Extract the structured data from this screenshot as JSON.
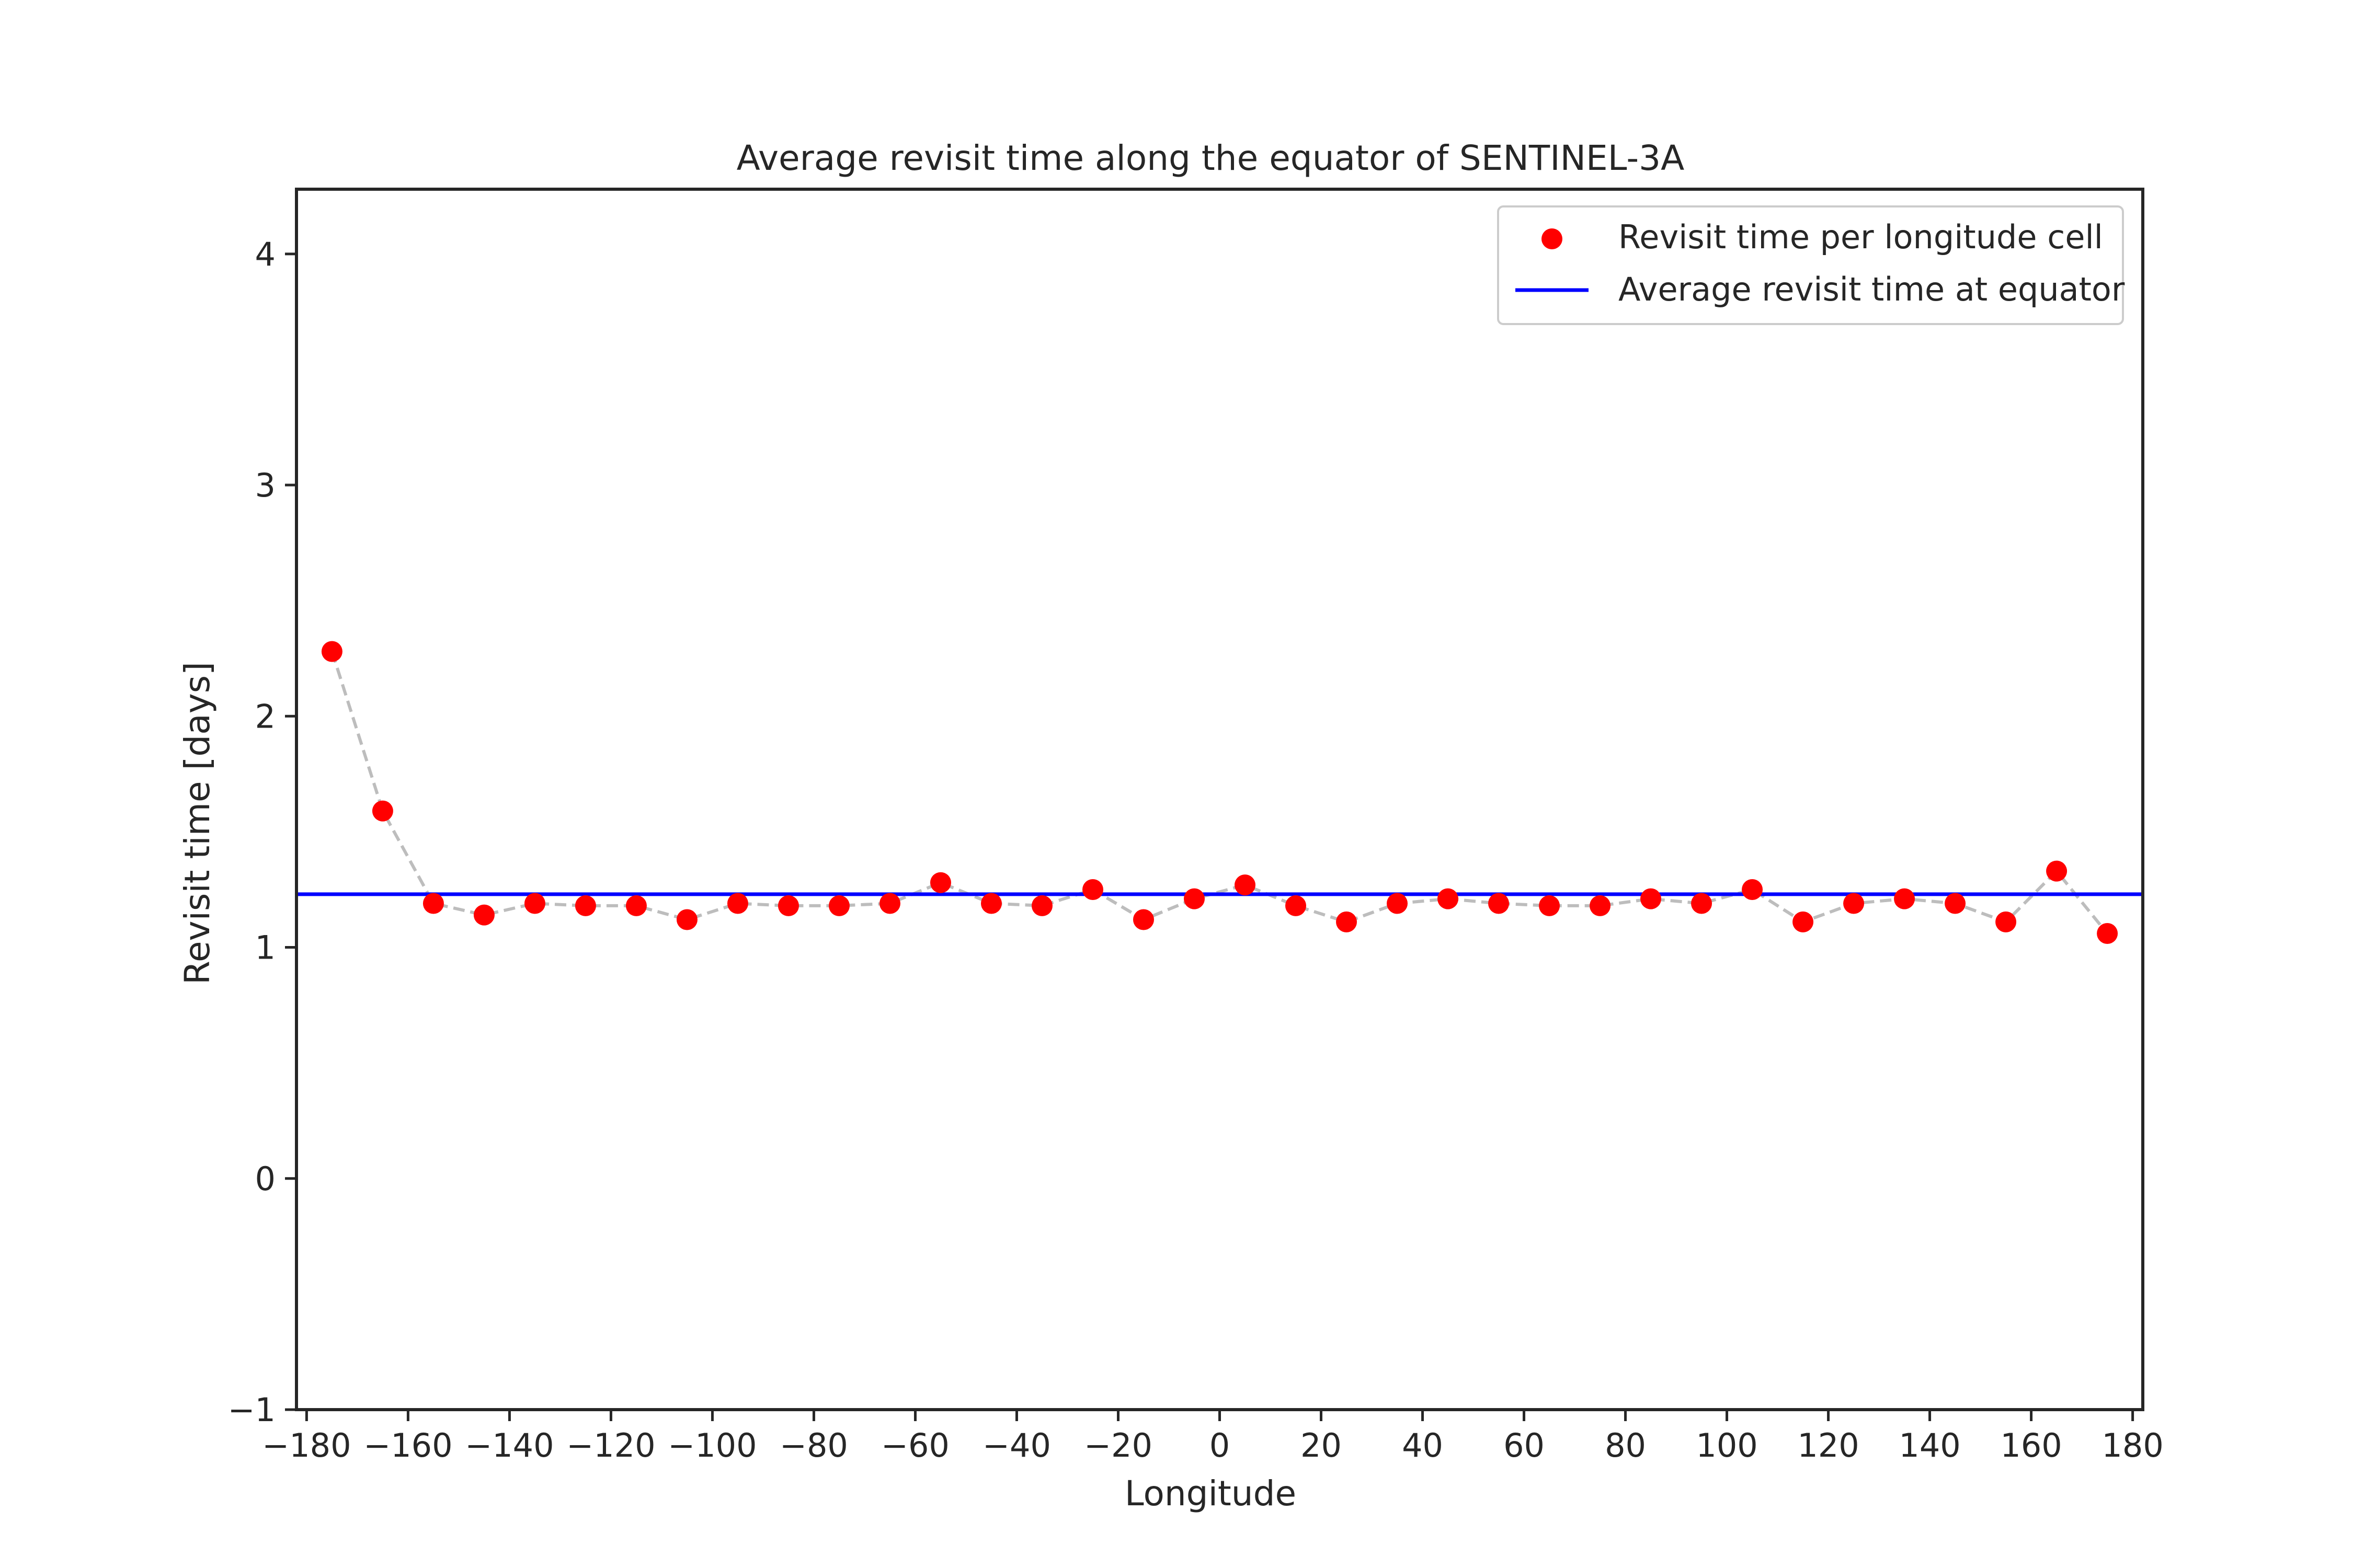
{
  "chart_data": {
    "type": "scatter",
    "title": "Average revisit time along the equator of SENTINEL-3A",
    "xlabel": "Longitude",
    "ylabel": "Revisit time [days]",
    "xlim": [
      -182,
      182
    ],
    "ylim": [
      -1,
      4.28
    ],
    "x_ticks": [
      -180,
      -160,
      -140,
      -120,
      -100,
      -80,
      -60,
      -40,
      -20,
      0,
      20,
      40,
      60,
      80,
      100,
      120,
      140,
      160,
      180
    ],
    "x_tick_labels": [
      "−180",
      "−160",
      "−140",
      "−120",
      "−100",
      "−80",
      "−60",
      "−40",
      "−20",
      "0",
      "20",
      "40",
      "60",
      "80",
      "100",
      "120",
      "140",
      "160",
      "180"
    ],
    "y_ticks": [
      -1,
      0,
      1,
      2,
      3,
      4
    ],
    "y_tick_labels": [
      "−1",
      "0",
      "1",
      "2",
      "3",
      "4"
    ],
    "grid": false,
    "legend_position": "top-right",
    "series": [
      {
        "name": "Revisit time per longitude cell",
        "kind": "scatter",
        "color": "#ff0000",
        "connector_color": "#bdbdbd",
        "x": [
          -175,
          -165,
          -155,
          -145,
          -135,
          -125,
          -115,
          -105,
          -95,
          -85,
          -75,
          -65,
          -55,
          -45,
          -35,
          -25,
          -15,
          -5,
          5,
          15,
          25,
          35,
          45,
          55,
          65,
          75,
          85,
          95,
          105,
          115,
          125,
          135,
          145,
          155,
          165,
          175
        ],
        "y": [
          2.28,
          1.59,
          1.19,
          1.14,
          1.19,
          1.18,
          1.18,
          1.12,
          1.19,
          1.18,
          1.18,
          1.19,
          1.28,
          1.19,
          1.18,
          1.25,
          1.12,
          1.21,
          1.27,
          1.18,
          1.11,
          1.19,
          1.21,
          1.19,
          1.18,
          1.18,
          1.21,
          1.19,
          1.25,
          1.11,
          1.19,
          1.21,
          1.19,
          1.11,
          1.33,
          1.06
        ]
      },
      {
        "name": "Average revisit time at equator",
        "kind": "hline",
        "color": "#0000ff",
        "y": 1.23
      }
    ]
  }
}
